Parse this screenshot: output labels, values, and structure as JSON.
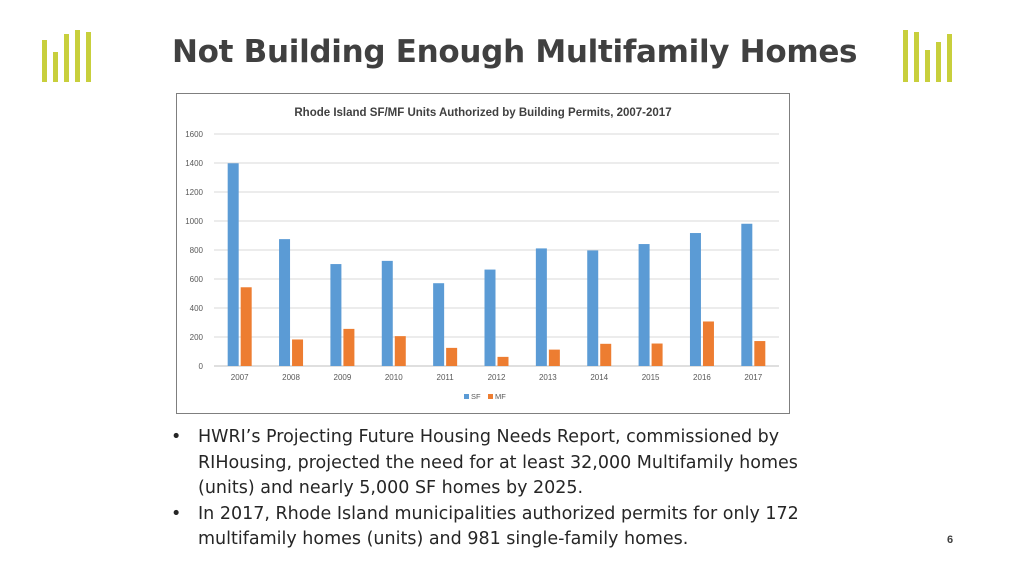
{
  "slide": {
    "title": "Not Building Enough Multifamily Homes",
    "page_number": "6",
    "bullets": [
      "HWRI’s Projecting Future Housing Needs Report, commissioned by RIHousing, projected the need for at least 32,000 Multifamily homes (units) and nearly 5,000 SF homes by 2025.",
      " In 2017, Rhode Island municipalities authorized permits for only 172 multifamily homes (units) and 981 single-family homes."
    ],
    "bullet_symbol": "•",
    "logo_color": "#c8cf3c"
  },
  "chart_data": {
    "type": "bar",
    "title": "Rhode Island SF/MF Units Authorized by Building Permits, 2007-2017",
    "categories": [
      "2007",
      "2008",
      "2009",
      "2010",
      "2011",
      "2012",
      "2013",
      "2014",
      "2015",
      "2016",
      "2017"
    ],
    "series": [
      {
        "name": "SF",
        "color": "#5b9bd5",
        "values": [
          1398,
          875,
          703,
          725,
          571,
          665,
          811,
          797,
          841,
          917,
          981
        ]
      },
      {
        "name": "MF",
        "color": "#ed7d31",
        "values": [
          543,
          183,
          256,
          206,
          125,
          63,
          113,
          153,
          155,
          307,
          172
        ]
      }
    ],
    "ylim": [
      0,
      1600
    ],
    "yticks": [
      0,
      200,
      400,
      600,
      800,
      1000,
      1200,
      1400,
      1600
    ],
    "grid": true,
    "legend_position": "bottom"
  }
}
